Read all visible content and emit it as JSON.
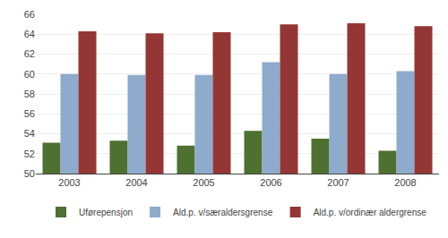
{
  "chart_data": {
    "type": "bar",
    "categories": [
      "2003",
      "2004",
      "2005",
      "2006",
      "2007",
      "2008"
    ],
    "series": [
      {
        "name": "Uførepensjon",
        "color": "#4e7030",
        "values": [
          53.1,
          53.3,
          52.8,
          54.3,
          53.5,
          52.3
        ]
      },
      {
        "name": "Ald.p. v/særaldersgrense",
        "color": "#8eaacc",
        "values": [
          60.0,
          59.9,
          59.9,
          61.2,
          60.0,
          60.3
        ]
      },
      {
        "name": "Ald.p. v/ordinær aldergrense",
        "color": "#943634",
        "values": [
          64.3,
          64.1,
          64.2,
          65.0,
          65.1,
          64.8
        ]
      }
    ],
    "ylim": [
      50,
      66
    ],
    "yticks": [
      50,
      52,
      54,
      56,
      58,
      60,
      62,
      64,
      66
    ],
    "grid": true,
    "legend": "bottom"
  }
}
